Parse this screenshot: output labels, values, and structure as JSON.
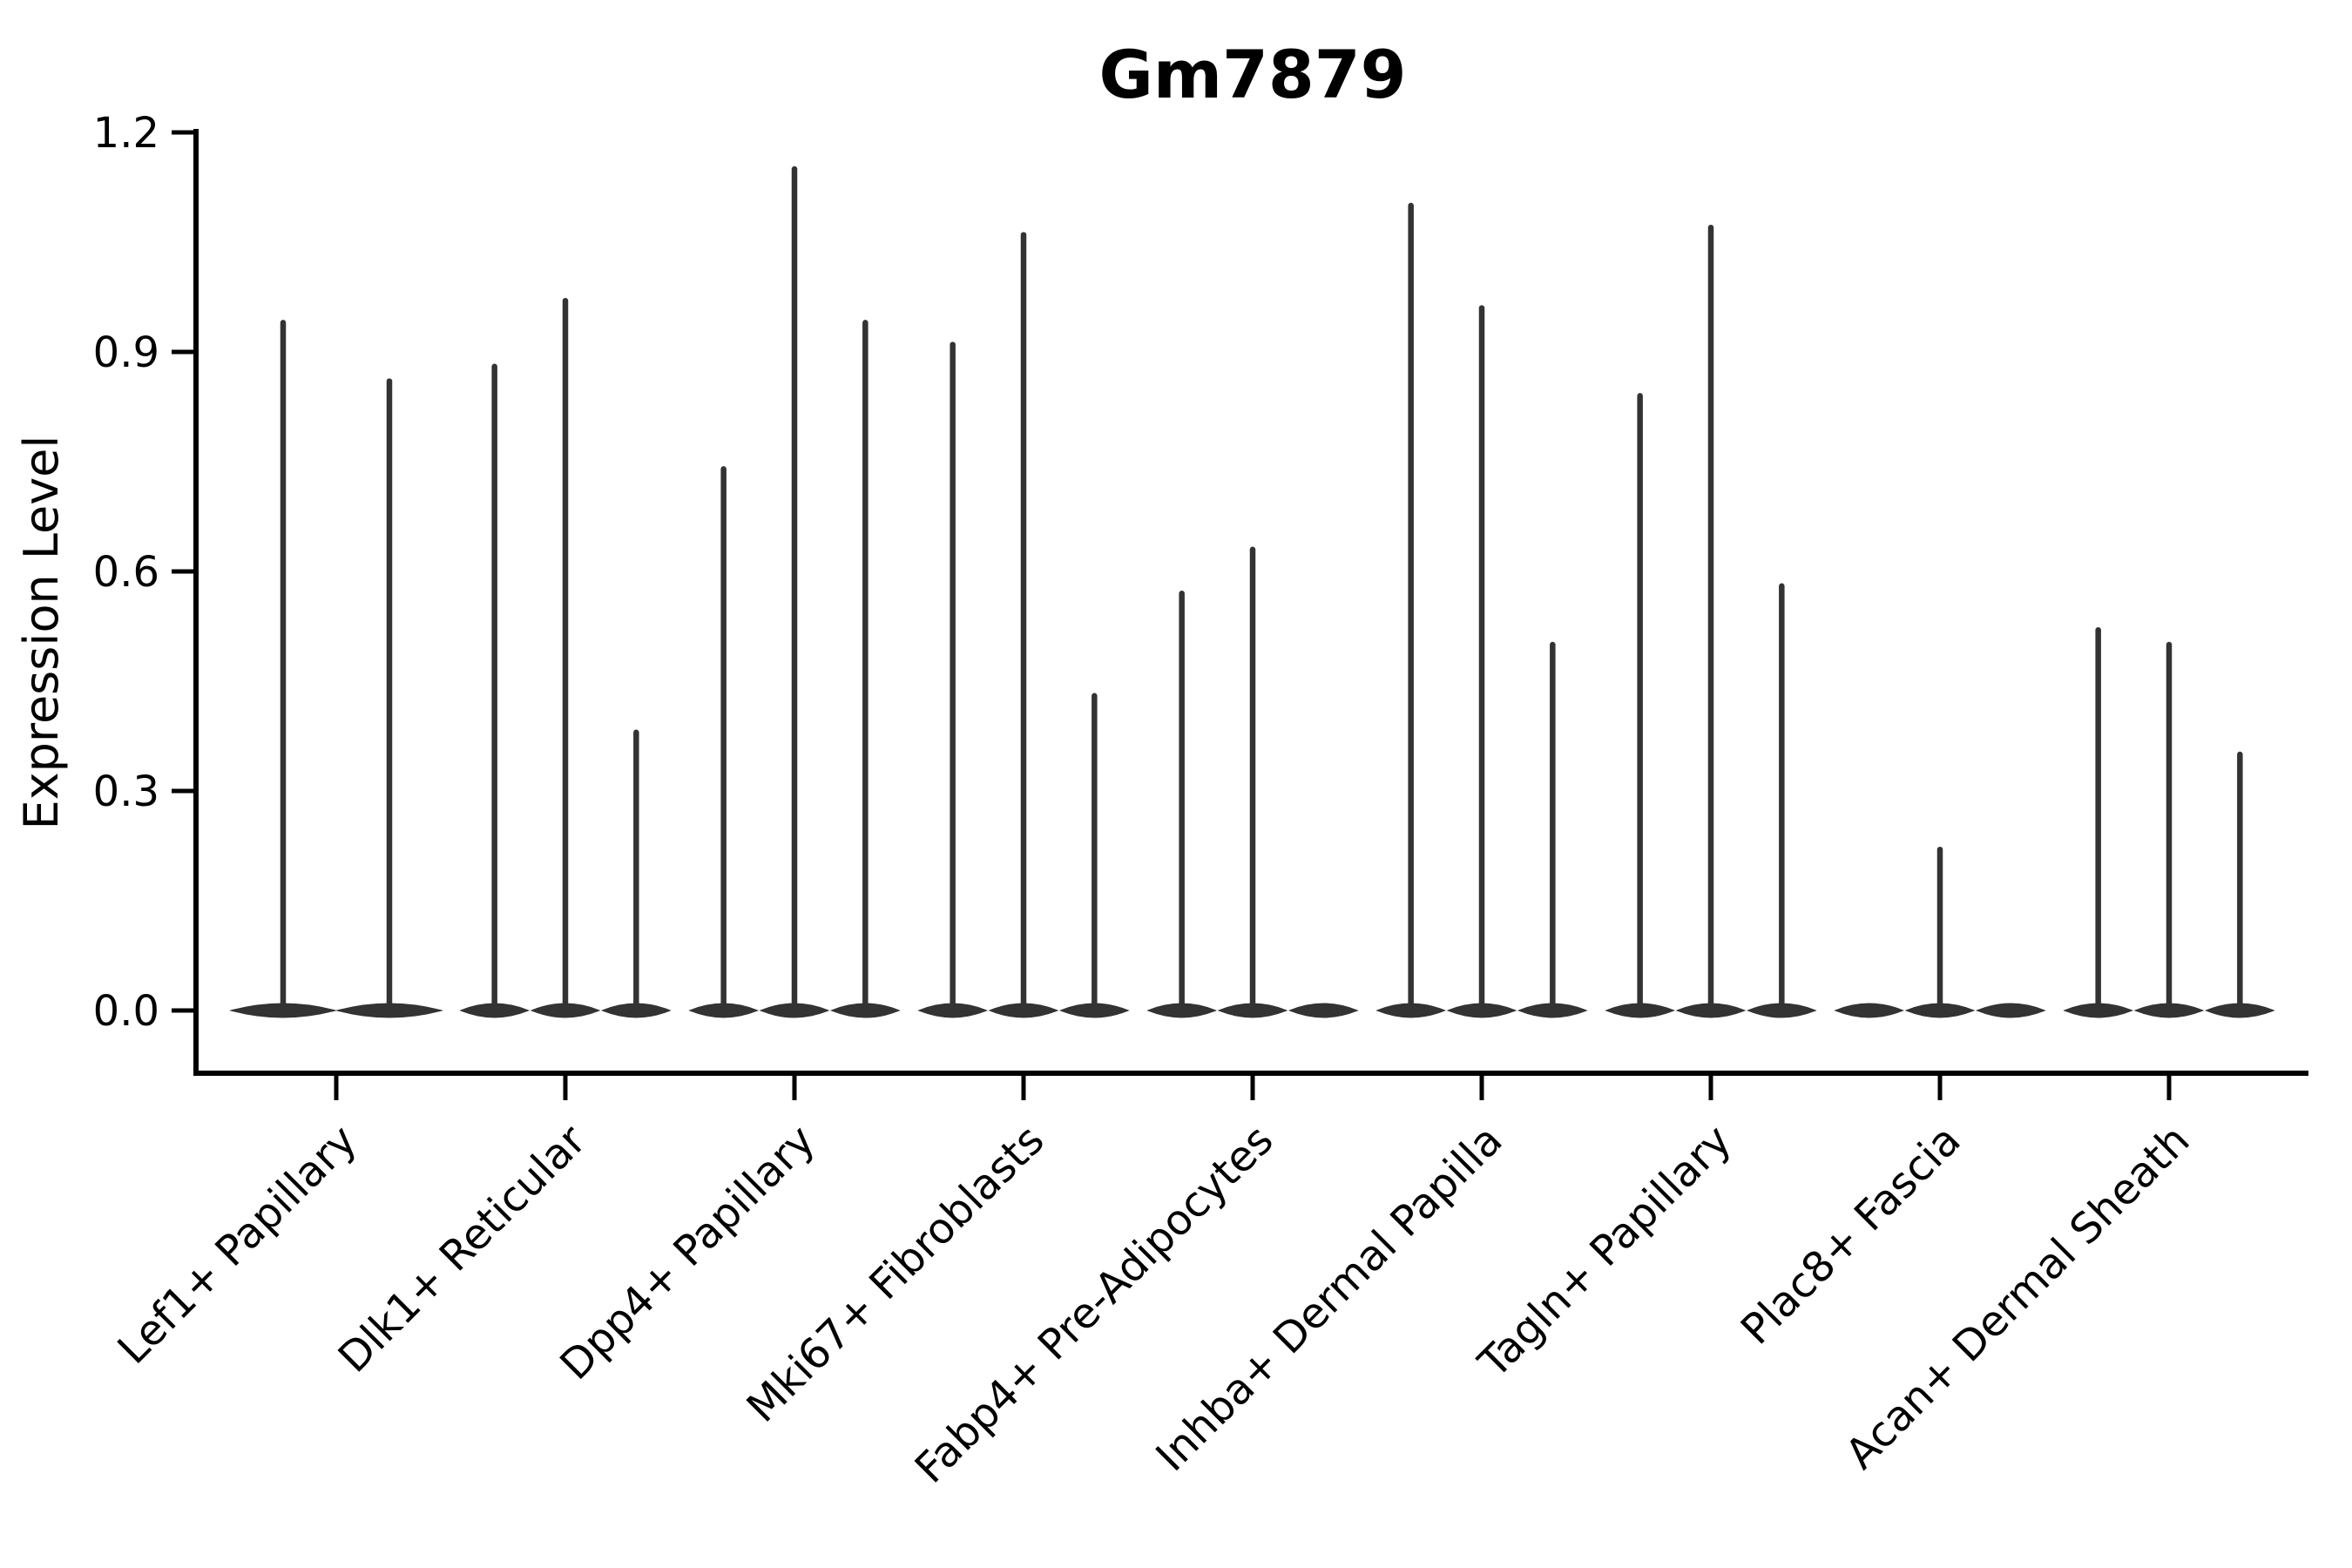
{
  "chart_data": {
    "type": "violin",
    "title": "Gm7879",
    "xlabel": "",
    "ylabel": "Expression Level",
    "ylim": [
      0,
      1.2
    ],
    "yticks": [
      {
        "v": 0.0,
        "label": "0.0"
      },
      {
        "v": 0.3,
        "label": "0.3"
      },
      {
        "v": 0.6,
        "label": "0.6"
      },
      {
        "v": 0.9,
        "label": "0.9"
      },
      {
        "v": 1.2,
        "label": "1.2"
      }
    ],
    "grid": "off",
    "legend": "none",
    "categories": [
      "Lef1+ Papillary",
      "Dlk1+ Reticular",
      "Dpp4+ Papillary",
      "Mki67+ Fibroblasts",
      "Fabp4+ Pre-Adipocytes",
      "Inhba+ Dermal Papilla",
      "Tagln+ Papillary",
      "Plac8+ Fascia",
      "Acan+ Dermal Sheath"
    ],
    "series": [
      {
        "label": "Lef1+ Papillary",
        "violins": [
          0.94,
          0.86
        ]
      },
      {
        "label": "Dlk1+ Reticular",
        "violins": [
          0.88,
          0.97,
          0.38
        ]
      },
      {
        "label": "Dpp4+ Papillary",
        "violins": [
          0.74,
          1.15,
          0.94
        ]
      },
      {
        "label": "Mki67+ Fibroblasts",
        "violins": [
          0.91,
          1.06,
          0.43
        ]
      },
      {
        "label": "Fabp4+ Pre-Adipocytes",
        "violins": [
          0.57,
          0.63,
          null
        ]
      },
      {
        "label": "Inhba+ Dermal Papilla",
        "violins": [
          1.1,
          0.96,
          0.5
        ]
      },
      {
        "label": "Tagln+ Papillary",
        "violins": [
          0.84,
          1.07,
          0.58
        ]
      },
      {
        "label": "Plac8+ Fascia",
        "violins": [
          null,
          0.22,
          null
        ]
      },
      {
        "label": "Acan+ Dermal Sheath",
        "violins": [
          0.52,
          0.5,
          0.35
        ]
      }
    ],
    "colors": {
      "violin": "#333333",
      "axis": "#000000",
      "text": "#000000",
      "background": "#ffffff"
    }
  }
}
